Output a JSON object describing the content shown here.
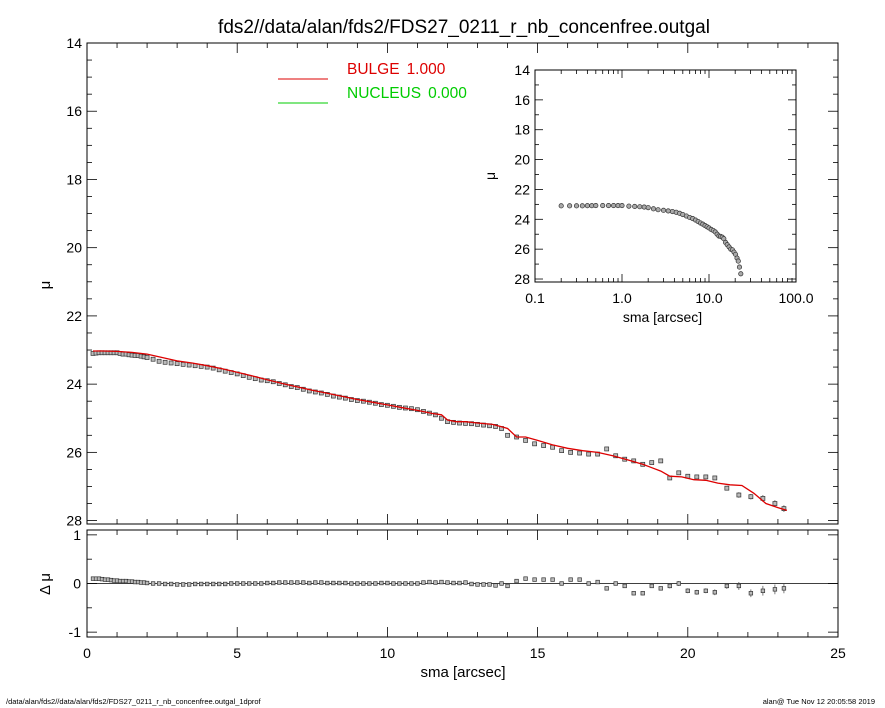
{
  "chart_data": [
    {
      "id": "main",
      "type": "scatter",
      "title": "fds2//data/alan/fds2/FDS27_0211_r_nb_concenfree.outgal",
      "xlabel": "",
      "ylabel": "μ",
      "xlim": [
        0,
        25
      ],
      "ylim": [
        28.1,
        14
      ],
      "y_inverted": true,
      "yticks": [
        14,
        16,
        18,
        20,
        22,
        24,
        26,
        28
      ],
      "legend": {
        "placement": "top-center",
        "entries": [
          {
            "name": "BULGE",
            "value": "1.000",
            "color": "#dd0000"
          },
          {
            "name": "NUCLEUS",
            "value": "0.000",
            "color": "#00cc00"
          }
        ]
      },
      "series": [
        {
          "name": "data",
          "marker": "square",
          "color": "#555555",
          "x": [
            0.2,
            0.3,
            0.4,
            0.5,
            0.6,
            0.7,
            0.8,
            0.9,
            1.0,
            1.1,
            1.2,
            1.3,
            1.4,
            1.5,
            1.6,
            1.7,
            1.8,
            1.9,
            2.0,
            2.2,
            2.4,
            2.6,
            2.8,
            3.0,
            3.2,
            3.4,
            3.6,
            3.8,
            4.0,
            4.2,
            4.4,
            4.6,
            4.8,
            5.0,
            5.2,
            5.4,
            5.6,
            5.8,
            6.0,
            6.2,
            6.4,
            6.6,
            6.8,
            7.0,
            7.2,
            7.4,
            7.6,
            7.8,
            8.0,
            8.2,
            8.4,
            8.6,
            8.8,
            9.0,
            9.2,
            9.4,
            9.6,
            9.8,
            10.0,
            10.2,
            10.4,
            10.6,
            10.8,
            11.0,
            11.2,
            11.4,
            11.6,
            11.8,
            12.0,
            12.2,
            12.4,
            12.6,
            12.8,
            13.0,
            13.2,
            13.4,
            13.6,
            13.8,
            14.0,
            14.3,
            14.6,
            14.9,
            15.2,
            15.5,
            15.8,
            16.1,
            16.4,
            16.7,
            17.0,
            17.3,
            17.6,
            17.9,
            18.2,
            18.5,
            18.8,
            19.1,
            19.4,
            19.7,
            20.0,
            20.3,
            20.6,
            20.9,
            21.3,
            21.7,
            22.1,
            22.5,
            22.9,
            23.2
          ],
          "y": [
            23.1,
            23.09,
            23.08,
            23.08,
            23.08,
            23.08,
            23.08,
            23.08,
            23.08,
            23.1,
            23.12,
            23.12,
            23.14,
            23.15,
            23.16,
            23.16,
            23.18,
            23.2,
            23.22,
            23.27,
            23.33,
            23.36,
            23.38,
            23.4,
            23.42,
            23.44,
            23.46,
            23.48,
            23.5,
            23.53,
            23.58,
            23.62,
            23.66,
            23.7,
            23.75,
            23.8,
            23.84,
            23.88,
            23.9,
            23.93,
            23.98,
            24.02,
            24.07,
            24.1,
            24.15,
            24.2,
            24.23,
            24.26,
            24.3,
            24.35,
            24.38,
            24.41,
            24.45,
            24.48,
            24.5,
            24.53,
            24.56,
            24.6,
            24.62,
            24.65,
            24.68,
            24.7,
            24.72,
            24.75,
            24.8,
            24.85,
            24.9,
            25.0,
            25.1,
            25.12,
            25.14,
            25.15,
            25.16,
            25.18,
            25.2,
            25.22,
            25.24,
            25.3,
            25.5,
            25.55,
            25.65,
            25.75,
            25.8,
            25.85,
            25.95,
            26.0,
            26.02,
            26.05,
            26.05,
            25.9,
            26.1,
            26.2,
            26.25,
            26.35,
            26.3,
            26.25,
            26.75,
            26.6,
            26.7,
            26.72,
            26.72,
            26.75,
            27.05,
            27.25,
            27.3,
            27.35,
            27.5,
            27.65
          ],
          "yerr": [
            0.01,
            0.01,
            0.01,
            0.01,
            0.01,
            0.01,
            0.01,
            0.01,
            0.01,
            0.01,
            0.01,
            0.01,
            0.01,
            0.01,
            0.01,
            0.01,
            0.01,
            0.01,
            0.01,
            0.01,
            0.01,
            0.01,
            0.01,
            0.01,
            0.01,
            0.01,
            0.01,
            0.01,
            0.01,
            0.01,
            0.01,
            0.01,
            0.01,
            0.01,
            0.01,
            0.01,
            0.01,
            0.01,
            0.01,
            0.01,
            0.01,
            0.01,
            0.01,
            0.01,
            0.01,
            0.01,
            0.01,
            0.01,
            0.01,
            0.01,
            0.01,
            0.01,
            0.01,
            0.01,
            0.01,
            0.01,
            0.01,
            0.01,
            0.01,
            0.01,
            0.01,
            0.01,
            0.01,
            0.01,
            0.01,
            0.01,
            0.01,
            0.01,
            0.01,
            0.01,
            0.01,
            0.01,
            0.01,
            0.01,
            0.01,
            0.01,
            0.01,
            0.01,
            0.02,
            0.02,
            0.02,
            0.02,
            0.02,
            0.02,
            0.02,
            0.02,
            0.03,
            0.03,
            0.03,
            0.03,
            0.03,
            0.03,
            0.04,
            0.04,
            0.04,
            0.04,
            0.05,
            0.05,
            0.05,
            0.05,
            0.05,
            0.06,
            0.06,
            0.08,
            0.08,
            0.1,
            0.1,
            0.1
          ]
        },
        {
          "name": "BULGE",
          "type": "line",
          "color": "#dd0000",
          "x": [
            0.2,
            0.5,
            1.0,
            1.5,
            2.0,
            2.5,
            3.0,
            3.5,
            4.0,
            4.5,
            5.0,
            5.5,
            6.0,
            6.5,
            7.0,
            7.5,
            8.0,
            8.5,
            9.0,
            9.5,
            10.0,
            10.5,
            11.0,
            11.5,
            11.8,
            12.0,
            12.3,
            12.6,
            13.0,
            13.5,
            13.8,
            14.0,
            14.3,
            14.6,
            15.0,
            15.5,
            16.0,
            16.5,
            17.0,
            17.5,
            18.0,
            18.5,
            18.8,
            19.1,
            19.4,
            19.8,
            20.2,
            20.6,
            21.0,
            21.4,
            21.8,
            22.2,
            22.6,
            23.0,
            23.3
          ],
          "y": [
            23.03,
            23.03,
            23.04,
            23.07,
            23.12,
            23.22,
            23.32,
            23.38,
            23.46,
            23.55,
            23.65,
            23.76,
            23.87,
            23.98,
            24.08,
            24.18,
            24.27,
            24.36,
            24.45,
            24.53,
            24.61,
            24.69,
            24.77,
            24.86,
            24.9,
            25.05,
            25.1,
            25.1,
            25.14,
            25.18,
            25.25,
            25.3,
            25.55,
            25.55,
            25.65,
            25.78,
            25.88,
            25.95,
            26.0,
            26.1,
            26.22,
            26.35,
            26.45,
            26.55,
            26.7,
            26.72,
            26.8,
            26.82,
            26.9,
            26.95,
            26.97,
            27.2,
            27.5,
            27.62,
            27.7
          ]
        }
      ]
    },
    {
      "id": "residual",
      "type": "scatter",
      "xlabel": "sma [arcsec]",
      "ylabel": "Δ μ",
      "xlim": [
        0,
        25
      ],
      "ylim": [
        -1.1,
        1.1
      ],
      "xticks": [
        0,
        5,
        10,
        15,
        20,
        25
      ],
      "yticks": [
        -1,
        0,
        1
      ],
      "series": [
        {
          "name": "residual",
          "marker": "square",
          "color": "#555555",
          "x": [
            0.2,
            0.3,
            0.4,
            0.5,
            0.6,
            0.7,
            0.8,
            0.9,
            1.0,
            1.1,
            1.2,
            1.3,
            1.4,
            1.5,
            1.6,
            1.7,
            1.8,
            1.9,
            2.0,
            2.2,
            2.4,
            2.6,
            2.8,
            3.0,
            3.2,
            3.4,
            3.6,
            3.8,
            4.0,
            4.2,
            4.4,
            4.6,
            4.8,
            5.0,
            5.2,
            5.4,
            5.6,
            5.8,
            6.0,
            6.2,
            6.4,
            6.6,
            6.8,
            7.0,
            7.2,
            7.4,
            7.6,
            7.8,
            8.0,
            8.2,
            8.4,
            8.6,
            8.8,
            9.0,
            9.2,
            9.4,
            9.6,
            9.8,
            10.0,
            10.2,
            10.4,
            10.6,
            10.8,
            11.0,
            11.2,
            11.4,
            11.6,
            11.8,
            12.0,
            12.2,
            12.4,
            12.6,
            12.8,
            13.0,
            13.2,
            13.4,
            13.6,
            13.8,
            14.0,
            14.3,
            14.6,
            14.9,
            15.2,
            15.5,
            15.8,
            16.1,
            16.4,
            16.7,
            17.0,
            17.3,
            17.6,
            17.9,
            18.2,
            18.5,
            18.8,
            19.1,
            19.4,
            19.7,
            20.0,
            20.3,
            20.6,
            20.9,
            21.3,
            21.7,
            22.1,
            22.5,
            22.9,
            23.2
          ],
          "y": [
            0.1,
            0.1,
            0.1,
            0.09,
            0.08,
            0.08,
            0.07,
            0.06,
            0.06,
            0.05,
            0.05,
            0.05,
            0.04,
            0.04,
            0.03,
            0.03,
            0.02,
            0.02,
            0.01,
            0.0,
            0.0,
            -0.01,
            -0.01,
            -0.02,
            -0.02,
            -0.02,
            -0.01,
            -0.01,
            -0.01,
            -0.01,
            -0.01,
            -0.01,
            0.0,
            0.0,
            0.0,
            0.0,
            0.0,
            0.0,
            0.01,
            0.01,
            0.02,
            0.02,
            0.02,
            0.02,
            0.02,
            0.01,
            0.02,
            0.02,
            0.01,
            0.01,
            0.01,
            0.01,
            0.0,
            0.0,
            0.0,
            0.0,
            0.0,
            0.01,
            0.01,
            0.0,
            0.0,
            0.0,
            0.0,
            0.0,
            0.02,
            0.03,
            0.02,
            0.03,
            0.02,
            0.01,
            0.01,
            0.02,
            -0.01,
            -0.02,
            -0.02,
            -0.02,
            -0.04,
            0.0,
            -0.05,
            0.05,
            0.1,
            0.08,
            0.08,
            0.08,
            0.0,
            0.08,
            0.08,
            0.0,
            0.03,
            -0.1,
            0.0,
            -0.05,
            -0.2,
            -0.2,
            -0.05,
            -0.1,
            -0.05,
            0.0,
            -0.15,
            -0.18,
            -0.15,
            -0.18,
            -0.05,
            -0.05,
            -0.2,
            -0.15,
            -0.12,
            -0.1
          ],
          "yerr": [
            0.01,
            0.01,
            0.01,
            0.01,
            0.01,
            0.01,
            0.01,
            0.01,
            0.01,
            0.01,
            0.01,
            0.01,
            0.01,
            0.01,
            0.01,
            0.01,
            0.01,
            0.01,
            0.01,
            0.01,
            0.01,
            0.01,
            0.01,
            0.01,
            0.01,
            0.01,
            0.01,
            0.01,
            0.01,
            0.01,
            0.01,
            0.01,
            0.01,
            0.01,
            0.01,
            0.01,
            0.01,
            0.01,
            0.01,
            0.01,
            0.01,
            0.01,
            0.01,
            0.01,
            0.01,
            0.01,
            0.01,
            0.01,
            0.01,
            0.01,
            0.01,
            0.01,
            0.01,
            0.01,
            0.01,
            0.01,
            0.01,
            0.01,
            0.01,
            0.01,
            0.01,
            0.01,
            0.01,
            0.01,
            0.01,
            0.01,
            0.01,
            0.01,
            0.01,
            0.01,
            0.01,
            0.01,
            0.01,
            0.01,
            0.01,
            0.01,
            0.01,
            0.01,
            0.02,
            0.02,
            0.02,
            0.02,
            0.02,
            0.02,
            0.02,
            0.02,
            0.03,
            0.03,
            0.03,
            0.03,
            0.03,
            0.03,
            0.04,
            0.04,
            0.04,
            0.04,
            0.05,
            0.05,
            0.05,
            0.05,
            0.05,
            0.06,
            0.06,
            0.08,
            0.08,
            0.1,
            0.1,
            0.1
          ]
        }
      ]
    },
    {
      "id": "inset",
      "type": "scatter",
      "xscale": "log",
      "xlabel": "sma [arcsec]",
      "ylabel": "μ",
      "xlim": [
        0.1,
        100
      ],
      "ylim": [
        28.2,
        14
      ],
      "y_inverted": true,
      "xticks": [
        0.1,
        1.0,
        10.0,
        100.0
      ],
      "xticklabels": [
        "0.1",
        "1.0",
        "10.0",
        "100.0"
      ],
      "yticks": [
        14,
        16,
        18,
        20,
        22,
        24,
        26,
        28
      ],
      "series": [
        {
          "name": "data",
          "marker": "circle",
          "color": "#555555",
          "x": [
            0.2,
            0.25,
            0.3,
            0.35,
            0.4,
            0.45,
            0.5,
            0.6,
            0.7,
            0.8,
            0.9,
            1.0,
            1.2,
            1.4,
            1.6,
            1.8,
            2.0,
            2.3,
            2.6,
            3.0,
            3.4,
            3.8,
            4.2,
            4.6,
            5.0,
            5.5,
            6.0,
            6.5,
            7.0,
            7.5,
            8.0,
            8.5,
            9.0,
            9.5,
            10.0,
            10.6,
            11.2,
            11.8,
            12.4,
            13.0,
            13.6,
            14.2,
            14.8,
            15.5,
            16.2,
            17.0,
            17.8,
            18.6,
            19.4,
            20.2,
            21.0,
            21.7,
            22.4,
            23.2
          ],
          "y": [
            23.1,
            23.1,
            23.1,
            23.1,
            23.09,
            23.09,
            23.08,
            23.08,
            23.08,
            23.08,
            23.08,
            23.08,
            23.12,
            23.14,
            23.16,
            23.18,
            23.22,
            23.3,
            23.36,
            23.4,
            23.44,
            23.48,
            23.53,
            23.6,
            23.68,
            23.78,
            23.88,
            23.95,
            24.05,
            24.15,
            24.25,
            24.33,
            24.42,
            24.5,
            24.58,
            24.68,
            24.75,
            24.85,
            25.0,
            25.12,
            25.15,
            25.2,
            25.3,
            25.55,
            25.7,
            25.85,
            26.0,
            26.05,
            26.2,
            26.35,
            26.6,
            26.8,
            27.2,
            27.65
          ]
        }
      ]
    }
  ],
  "footer": {
    "left": "/data/alan/fds2//data/alan/fds2/FDS27_0211_r_nb_concenfree.outgal_1dprof",
    "right": "alan@  Tue Nov 12 20:05:58 2019"
  }
}
